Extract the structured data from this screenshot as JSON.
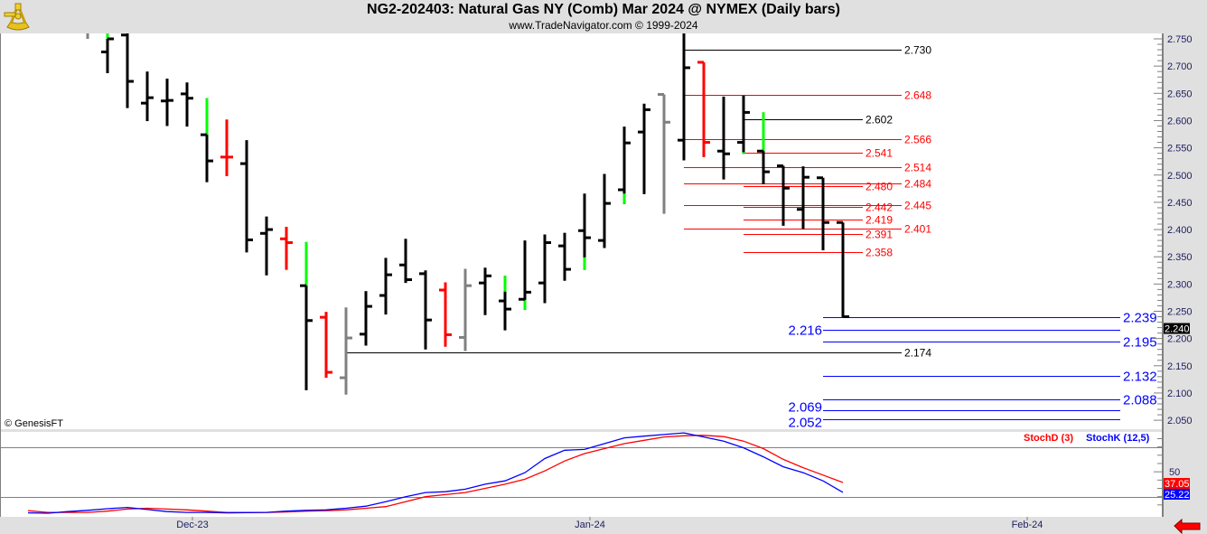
{
  "header": {
    "title": "NG2-202403:  Natural Gas NY (Comb) Mar 2024 @ NYMEX  (Daily bars)",
    "subtitle": "www.TradeNavigator.com © 1999-2024",
    "logo_icon": "sextant-icon"
  },
  "copyright": "© GenesisFT",
  "colors": {
    "up_highlight": "#00ff00",
    "down": "#ff0000",
    "neutral": "#808080",
    "normal": "#000000",
    "stoch_k": "#0000ff",
    "stoch_d": "#ff0000",
    "level_blue": "#0000ff",
    "level_red": "#ff0000",
    "level_black": "#000000"
  },
  "chart_data": [
    {
      "type": "ohlc",
      "title": "NG2-202403:  Natural Gas NY (Comb) Mar 2024 @ NYMEX  (Daily bars)",
      "ylim": [
        2.04,
        2.76
      ],
      "y_ticks": [
        "2.050",
        "2.100",
        "2.150",
        "2.200",
        "2.250",
        "2.300",
        "2.350",
        "2.400",
        "2.450",
        "2.500",
        "2.550",
        "2.600",
        "2.650",
        "2.700",
        "2.750"
      ],
      "x_ticks": [
        {
          "label": "Dec-23",
          "bar": 8
        },
        {
          "label": "Jan-24",
          "bar": 28
        },
        {
          "label": "Feb-24",
          "bar": 50
        }
      ],
      "last_price": "2.240",
      "bars": [
        null,
        null,
        null,
        {
          "o": 2.775,
          "h": 2.8,
          "l": 2.75,
          "c": 2.765,
          "color": "gray"
        },
        {
          "o": 2.726,
          "h": 2.77,
          "l": 2.687,
          "c": 2.75,
          "color": "black",
          "green": [
            2.75,
            2.77
          ]
        },
        {
          "o": 2.757,
          "h": 2.77,
          "l": 2.623,
          "c": 2.672,
          "color": "black"
        },
        {
          "o": 2.632,
          "h": 2.69,
          "l": 2.599,
          "c": 2.642,
          "color": "black"
        },
        {
          "o": 2.636,
          "h": 2.677,
          "l": 2.59,
          "c": 2.637,
          "color": "black"
        },
        {
          "o": 2.649,
          "h": 2.67,
          "l": 2.589,
          "c": 2.641,
          "color": "black"
        },
        {
          "o": 2.574,
          "h": 2.641,
          "l": 2.487,
          "c": 2.526,
          "color": "black",
          "green": [
            2.574,
            2.641
          ]
        },
        {
          "o": 2.533,
          "h": 2.602,
          "l": 2.498,
          "c": 2.533,
          "color": "red"
        },
        {
          "o": 2.521,
          "h": 2.564,
          "l": 2.358,
          "c": 2.381,
          "color": "black"
        },
        {
          "o": 2.393,
          "h": 2.424,
          "l": 2.316,
          "c": 2.4,
          "color": "black"
        },
        {
          "o": 2.383,
          "h": 2.405,
          "l": 2.326,
          "c": 2.376,
          "color": "red"
        },
        {
          "o": 2.297,
          "h": 2.377,
          "l": 2.105,
          "c": 2.233,
          "color": "black",
          "green": [
            2.297,
            2.377
          ]
        },
        {
          "o": 2.239,
          "h": 2.249,
          "l": 2.128,
          "c": 2.138,
          "color": "red"
        },
        {
          "o": 2.128,
          "h": 2.257,
          "l": 2.097,
          "c": 2.201,
          "color": "gray"
        },
        {
          "o": 2.208,
          "h": 2.287,
          "l": 2.187,
          "c": 2.259,
          "color": "black"
        },
        {
          "o": 2.279,
          "h": 2.348,
          "l": 2.244,
          "c": 2.317,
          "color": "black"
        },
        {
          "o": 2.335,
          "h": 2.383,
          "l": 2.302,
          "c": 2.308,
          "color": "black"
        },
        {
          "o": 2.319,
          "h": 2.325,
          "l": 2.18,
          "c": 2.234,
          "color": "black"
        },
        {
          "o": 2.289,
          "h": 2.303,
          "l": 2.185,
          "c": 2.207,
          "color": "red"
        },
        {
          "o": 2.202,
          "h": 2.328,
          "l": 2.177,
          "c": 2.297,
          "color": "gray"
        },
        {
          "o": 2.302,
          "h": 2.33,
          "l": 2.243,
          "c": 2.315,
          "color": "black"
        },
        {
          "o": 2.269,
          "h": 2.315,
          "l": 2.215,
          "c": 2.254,
          "color": "black",
          "green": [
            2.286,
            2.315
          ]
        },
        {
          "o": 2.272,
          "h": 2.38,
          "l": 2.253,
          "c": 2.285,
          "color": "black",
          "green": [
            2.253,
            2.271
          ]
        },
        {
          "o": 2.302,
          "h": 2.391,
          "l": 2.265,
          "c": 2.376,
          "color": "black"
        },
        {
          "o": 2.37,
          "h": 2.394,
          "l": 2.306,
          "c": 2.327,
          "color": "black"
        },
        {
          "o": 2.398,
          "h": 2.466,
          "l": 2.326,
          "c": 2.385,
          "color": "black",
          "green": [
            2.326,
            2.349
          ]
        },
        {
          "o": 2.38,
          "h": 2.502,
          "l": 2.366,
          "c": 2.448,
          "color": "black"
        },
        {
          "o": 2.473,
          "h": 2.589,
          "l": 2.447,
          "c": 2.559,
          "color": "black",
          "green": [
            2.447,
            2.466
          ]
        },
        {
          "o": 2.579,
          "h": 2.631,
          "l": 2.465,
          "c": 2.62,
          "color": "black"
        },
        {
          "o": 2.648,
          "h": 2.648,
          "l": 2.429,
          "c": 2.597,
          "color": "gray"
        },
        {
          "o": 2.564,
          "h": 2.77,
          "l": 2.527,
          "c": 2.697,
          "color": "black"
        },
        {
          "o": 2.707,
          "h": 2.707,
          "l": 2.533,
          "c": 2.56,
          "color": "red"
        },
        {
          "o": 2.544,
          "h": 2.644,
          "l": 2.492,
          "c": 2.539,
          "color": "black"
        },
        {
          "o": 2.56,
          "h": 2.646,
          "l": 2.539,
          "c": 2.615,
          "color": "black",
          "green": [
            2.539,
            2.542
          ]
        },
        {
          "o": 2.544,
          "h": 2.615,
          "l": 2.483,
          "c": 2.506,
          "color": "black",
          "green": [
            2.544,
            2.615
          ]
        },
        {
          "o": 2.517,
          "h": 2.517,
          "l": 2.407,
          "c": 2.476,
          "color": "black"
        },
        {
          "o": 2.437,
          "h": 2.516,
          "l": 2.401,
          "c": 2.496,
          "color": "black"
        },
        {
          "o": 2.495,
          "h": 2.495,
          "l": 2.362,
          "c": 2.413,
          "color": "black"
        },
        {
          "o": 2.413,
          "h": 2.413,
          "l": 2.239,
          "c": 2.24,
          "color": "black"
        }
      ],
      "levels": [
        {
          "label": "2.730",
          "price": 2.73,
          "color": "black",
          "start_bar": 33,
          "extent": "long",
          "label_side": "right"
        },
        {
          "label": "2.602",
          "price": 2.602,
          "color": "black",
          "start_bar": 36,
          "extent": "short",
          "label_side": "right"
        },
        {
          "label": "2.174",
          "price": 2.174,
          "color": "black",
          "start_bar": 16,
          "extent": "long",
          "label_side": "right"
        },
        {
          "label": "2.648",
          "price": 2.648,
          "color": "red",
          "start_bar": 33,
          "extent": "long",
          "label_side": "right"
        },
        {
          "label": "2.566",
          "price": 2.566,
          "color": "red",
          "start_bar": 33,
          "extent": "long",
          "label_side": "right"
        },
        {
          "label": "2.514",
          "price": 2.514,
          "color": "red",
          "start_bar": 33,
          "extent": "long",
          "label_side": "right"
        },
        {
          "label": "2.484",
          "price": 2.484,
          "color": "red",
          "start_bar": 33,
          "extent": "long",
          "label_side": "right"
        },
        {
          "label": "2.445",
          "price": 2.445,
          "color": "red",
          "start_bar": 33,
          "extent": "long",
          "label_side": "right"
        },
        {
          "label": "2.401",
          "price": 2.401,
          "color": "red",
          "start_bar": 33,
          "extent": "long",
          "label_side": "right"
        },
        {
          "label": "2.541",
          "price": 2.541,
          "color": "red",
          "start_bar": 36,
          "extent": "short",
          "label_side": "right"
        },
        {
          "label": "2.480",
          "price": 2.48,
          "color": "red",
          "start_bar": 36,
          "extent": "short",
          "label_side": "right"
        },
        {
          "label": "2.442",
          "price": 2.442,
          "color": "red",
          "start_bar": 36,
          "extent": "short",
          "label_side": "right"
        },
        {
          "label": "2.419",
          "price": 2.419,
          "color": "red",
          "start_bar": 36,
          "extent": "short",
          "label_side": "right"
        },
        {
          "label": "2.391",
          "price": 2.391,
          "color": "red",
          "start_bar": 36,
          "extent": "short",
          "label_side": "right"
        },
        {
          "label": "2.358",
          "price": 2.358,
          "color": "red",
          "start_bar": 36,
          "extent": "short",
          "label_side": "right"
        },
        {
          "label": "2.239",
          "price": 2.239,
          "color": "blue",
          "start_bar": 40,
          "extent": "axis",
          "label_side": "right"
        },
        {
          "label": "2.216",
          "price": 2.216,
          "color": "blue",
          "start_bar": 40,
          "extent": "axis",
          "label_side": "left"
        },
        {
          "label": "2.195",
          "price": 2.195,
          "color": "blue",
          "start_bar": 40,
          "extent": "axis",
          "label_side": "right"
        },
        {
          "label": "2.132",
          "price": 2.132,
          "color": "blue",
          "start_bar": 40,
          "extent": "axis",
          "label_side": "right"
        },
        {
          "label": "2.088",
          "price": 2.088,
          "color": "blue",
          "start_bar": 40,
          "extent": "axis",
          "label_side": "right"
        },
        {
          "label": "2.069",
          "price": 2.069,
          "color": "blue",
          "start_bar": 40,
          "extent": "axis",
          "label_side": "left"
        },
        {
          "label": "2.052",
          "price": 2.052,
          "color": "blue",
          "start_bar": 40,
          "extent": "axis",
          "label_side": "left"
        }
      ]
    },
    {
      "type": "line",
      "ylim": [
        0,
        100
      ],
      "y_ticks": [
        "50"
      ],
      "guide_lines": [
        20,
        80
      ],
      "series": [
        {
          "name": "StochD (3)",
          "color": "#ff0000",
          "last": "37.05",
          "values": [
            3,
            1,
            1,
            1,
            2.5,
            5,
            6,
            5,
            4,
            2.5,
            1,
            1,
            1,
            1.5,
            2.5,
            3,
            4,
            6,
            8,
            14,
            20,
            22.5,
            25,
            30,
            35,
            41,
            51,
            63,
            72,
            78,
            84,
            88,
            92,
            93.5,
            94,
            92.5,
            87,
            78,
            65,
            55,
            46,
            37.05
          ]
        },
        {
          "name": "StochK (12,5)",
          "color": "#0000ff",
          "last": "25.22",
          "values": [
            0.4,
            0,
            2,
            3.5,
            5.5,
            7,
            4.5,
            2,
            1,
            1,
            0.4,
            0.6,
            1,
            2.5,
            3.5,
            4,
            6,
            8.5,
            14,
            20,
            25,
            26,
            29,
            35,
            39,
            49,
            66,
            76,
            77,
            84,
            91,
            93,
            95,
            97,
            92,
            87,
            79,
            68,
            56,
            49,
            39,
            25.22
          ]
        }
      ]
    }
  ]
}
